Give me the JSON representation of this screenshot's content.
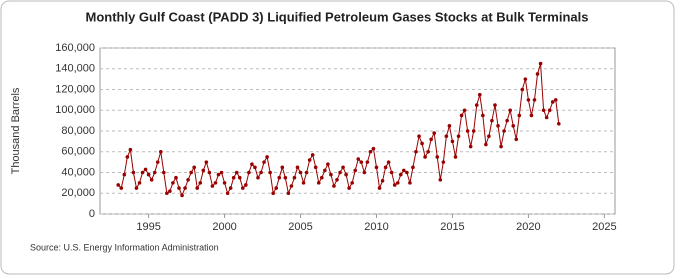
{
  "chart_data": {
    "type": "line",
    "title": "Monthly Gulf Coast (PADD 3) Liquified Petroleum Gases Stocks at Bulk Terminals",
    "y_label": "Thousand Barrels",
    "source": "Source: U.S. Energy Information Administration",
    "x": [
      1993,
      1993.2,
      1993.4,
      1993.6,
      1993.8,
      1994,
      1994.2,
      1994.4,
      1994.6,
      1994.8,
      1995,
      1995.2,
      1995.4,
      1995.6,
      1995.8,
      1996,
      1996.2,
      1996.4,
      1996.6,
      1996.8,
      1997,
      1997.2,
      1997.4,
      1997.6,
      1997.8,
      1998,
      1998.2,
      1998.4,
      1998.6,
      1998.8,
      1999,
      1999.2,
      1999.4,
      1999.6,
      1999.8,
      2000,
      2000.2,
      2000.4,
      2000.6,
      2000.8,
      2001,
      2001.2,
      2001.4,
      2001.6,
      2001.8,
      2002,
      2002.2,
      2002.4,
      2002.6,
      2002.8,
      2003,
      2003.2,
      2003.4,
      2003.6,
      2003.8,
      2004,
      2004.2,
      2004.4,
      2004.6,
      2004.8,
      2005,
      2005.2,
      2005.4,
      2005.6,
      2005.8,
      2006,
      2006.2,
      2006.4,
      2006.6,
      2006.8,
      2007,
      2007.2,
      2007.4,
      2007.6,
      2007.8,
      2008,
      2008.2,
      2008.4,
      2008.6,
      2008.8,
      2009,
      2009.2,
      2009.4,
      2009.6,
      2009.8,
      2010,
      2010.2,
      2010.4,
      2010.6,
      2010.8,
      2011,
      2011.2,
      2011.4,
      2011.6,
      2011.8,
      2012,
      2012.2,
      2012.4,
      2012.6,
      2012.8,
      2013,
      2013.2,
      2013.4,
      2013.6,
      2013.8,
      2014,
      2014.2,
      2014.4,
      2014.6,
      2014.8,
      2015,
      2015.2,
      2015.4,
      2015.6,
      2015.8,
      2016,
      2016.2,
      2016.4,
      2016.6,
      2016.8,
      2017,
      2017.2,
      2017.4,
      2017.6,
      2017.8,
      2018,
      2018.2,
      2018.4,
      2018.6,
      2018.8,
      2019,
      2019.2,
      2019.4,
      2019.6,
      2019.8,
      2020,
      2020.2,
      2020.4,
      2020.6,
      2020.8,
      2021,
      2021.2,
      2021.4,
      2021.6,
      2021.8,
      2022
    ],
    "series": [
      {
        "name": "Stocks",
        "color": "#990000",
        "values": [
          28000,
          25000,
          38000,
          55000,
          62000,
          40000,
          25000,
          30000,
          40000,
          43000,
          38000,
          33000,
          40000,
          50000,
          60000,
          40000,
          20000,
          22000,
          30000,
          35000,
          25000,
          18000,
          25000,
          33000,
          40000,
          45000,
          25000,
          30000,
          42000,
          50000,
          40000,
          27000,
          30000,
          38000,
          40000,
          30000,
          20000,
          25000,
          35000,
          40000,
          35000,
          25000,
          28000,
          40000,
          48000,
          45000,
          35000,
          40000,
          50000,
          55000,
          40000,
          20000,
          25000,
          35000,
          45000,
          35000,
          20000,
          27000,
          35000,
          45000,
          40000,
          30000,
          40000,
          52000,
          57000,
          45000,
          30000,
          35000,
          42000,
          48000,
          38000,
          27000,
          33000,
          40000,
          45000,
          38000,
          25000,
          30000,
          42000,
          53000,
          50000,
          40000,
          50000,
          60000,
          63000,
          45000,
          25000,
          32000,
          45000,
          50000,
          40000,
          28000,
          30000,
          38000,
          42000,
          40000,
          30000,
          45000,
          60000,
          75000,
          68000,
          55000,
          60000,
          72000,
          78000,
          55000,
          33000,
          50000,
          75000,
          85000,
          70000,
          55000,
          75000,
          95000,
          100000,
          80000,
          65000,
          80000,
          105000,
          115000,
          95000,
          67000,
          75000,
          90000,
          105000,
          85000,
          65000,
          80000,
          90000,
          100000,
          85000,
          72000,
          95000,
          120000,
          130000,
          110000,
          95000,
          110000,
          135000,
          145000,
          100000,
          93000,
          100000,
          108000,
          110000,
          87000
        ]
      }
    ],
    "xlim": [
      1991.8,
      2025.7
    ],
    "xticks": [
      1995,
      2000,
      2005,
      2010,
      2015,
      2020,
      2025
    ],
    "ylim": [
      0,
      160000
    ],
    "yticks": [
      0,
      {
        "value": 20000,
        "label": "20,000"
      },
      {
        "value": 40000,
        "label": "40,000"
      },
      {
        "value": 60000,
        "label": "60,000"
      },
      {
        "value": 80000,
        "label": "80,000"
      },
      {
        "value": 100000,
        "label": "100,000"
      },
      {
        "value": 120000,
        "label": "120,000"
      },
      {
        "value": 140000,
        "label": "140,000"
      },
      {
        "value": 160000,
        "label": "160,000"
      }
    ],
    "grid": true
  }
}
